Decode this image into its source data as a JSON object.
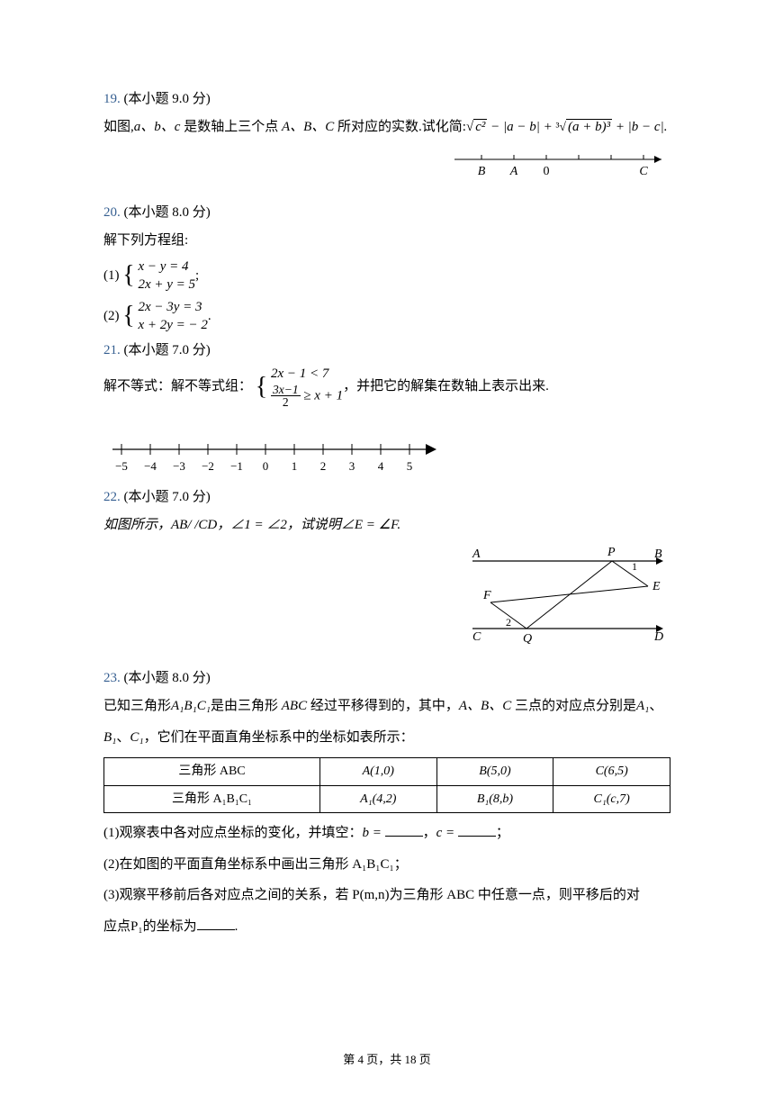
{
  "page": {
    "current": 4,
    "total": 18,
    "footer_prefix": "第 ",
    "footer_mid": " 页，共 ",
    "footer_suffix": " 页"
  },
  "q19": {
    "num": "19.",
    "points": "(本小题 9.0 分)",
    "text_a": "如图,",
    "text_b": " 是数轴上三个点 ",
    "text_c": " 所对应的实数.试化简:",
    "vars_abc": "a、b、c",
    "pts_abc": "A、B、C",
    "expr_sqrt_c2": "c²",
    "expr_abs1": " − |a − b| + ",
    "expr_cbrt": "(a + b)³",
    "expr_abs2": " + |b − c|.",
    "diagram": {
      "labels": [
        "B",
        "A",
        "0",
        "C"
      ],
      "positions": [
        30,
        66,
        102,
        210
      ]
    }
  },
  "q20": {
    "num": "20.",
    "points": "(本小题 8.0 分)",
    "intro": "解下列方程组:",
    "p1": "(1)",
    "p1_l1": "x − y = 4",
    "p1_l2": "2x + y = 5",
    "p1_end": ";",
    "p2": "(2)",
    "p2_l1": "2x − 3y = 3",
    "p2_l2": "x + 2y = − 2",
    "p2_end": "."
  },
  "q21": {
    "num": "21.",
    "points": "(本小题 7.0 分)",
    "text_a": "解不等式：解不等式组：",
    "sys_l1": "2x − 1 < 7",
    "frac_num": "3x−1",
    "frac_den": "2",
    "sys_l2_rest": " ≥ x + 1",
    "text_b": "，并把它的解集在数轴上表示出来.",
    "ticks": [
      "−5",
      "−4",
      "−3",
      "−2",
      "−1",
      "0",
      "1",
      "2",
      "3",
      "4",
      "5"
    ]
  },
  "q22": {
    "num": "22.",
    "points": "(本小题 7.0 分)",
    "text": "如图所示，AB/  /CD，∠1 = ∠2，试说明∠E = ∠F.",
    "labels": {
      "A": "A",
      "B": "B",
      "C": "C",
      "D": "D",
      "E": "E",
      "F": "F",
      "P": "P",
      "Q": "Q",
      "ang1": "1",
      "ang2": "2"
    }
  },
  "q23": {
    "num": "23.",
    "points": "(本小题 8.0 分)",
    "line1_a": "已知三角形",
    "tri1": "A₁B₁C₁",
    "line1_b": "是由三角形 ",
    "tri2": "ABC",
    "line1_c": " 经过平移得到的，其中，",
    "line1_d": " 三点的对应点分别是",
    "line2_a": "、",
    "line2_b": "，它们在平面直角坐标系中的坐标如表所示：",
    "tbl": {
      "r1c1": "三角形 ABC",
      "r1c2": "A(1,0)",
      "r1c3": "B(5,0)",
      "r1c4": "C(6,5)",
      "r2c1": "三角形 A₁B₁C₁",
      "r2c2": "A₁(4,2)",
      "r2c3": "B₁(8,b)",
      "r2c4": "C₁(c,7)"
    },
    "p1_a": "(1)观察表中各对应点坐标的变化，并填空：",
    "p1_b": "b = ",
    "p1_c": "，",
    "p1_d": "c = ",
    "p1_e": "；",
    "p2": "(2)在如图的平面直角坐标系中画出三角形 A₁B₁C₁；",
    "p3_a": "(3)观察平移前后各对应点之间的关系，若 P(m,n)为三角形 ABC 中任意一点，则平移后的对",
    "p3_b": "应点P₁的坐标为",
    "p3_c": "."
  }
}
